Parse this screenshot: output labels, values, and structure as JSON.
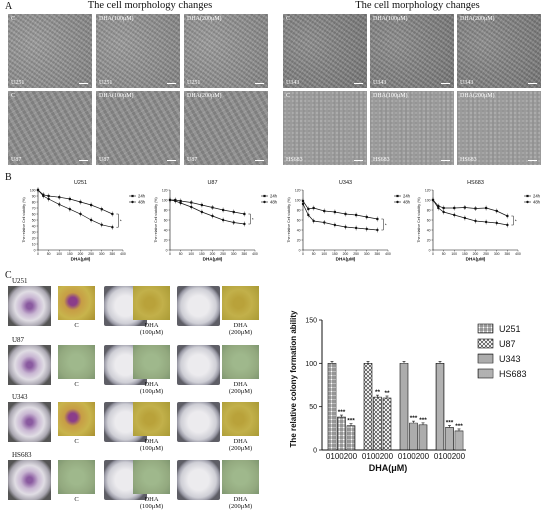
{
  "panel_a": {
    "letter": "A",
    "left_title": "The cell morphology changes",
    "right_title": "The cell morphology changes",
    "images": [
      {
        "top": "C",
        "bottom": "U251"
      },
      {
        "top": "DHA(100μM)",
        "bottom": "U251"
      },
      {
        "top": "DHA(200μM)",
        "bottom": "U251"
      },
      {
        "top": "C",
        "bottom": "U87"
      },
      {
        "top": "DHA(100μM)",
        "bottom": "U87"
      },
      {
        "top": "DHA(200μM)",
        "bottom": "U87"
      },
      {
        "top": "C",
        "bottom": "U343"
      },
      {
        "top": "DHA(100μM)",
        "bottom": "U343"
      },
      {
        "top": "DHA(200μM)",
        "bottom": "U343"
      },
      {
        "top": "C",
        "bottom": "HS683"
      },
      {
        "top": "DHA(100μM)",
        "bottom": "HS683"
      },
      {
        "top": "DHA(200μM)",
        "bottom": "HS683"
      }
    ]
  },
  "panel_b": {
    "letter": "B"
  },
  "panel_c": {
    "letter": "C",
    "rows": [
      {
        "cell": "U251",
        "labels": [
          "C",
          "DHA\n(100μM)",
          "DHA\n(200μM)"
        ]
      },
      {
        "cell": "U87",
        "labels": [
          "C",
          "DHA\n(100μM)",
          "DHA\n(200μM)"
        ]
      },
      {
        "cell": "U343",
        "labels": [
          "C",
          "DHA\n(100μM)",
          "DHA\n(200μM)"
        ]
      },
      {
        "cell": "HS683",
        "labels": [
          "C",
          "DHA\n(100μM)",
          "DHA\n(200μM)"
        ]
      }
    ]
  },
  "chart_data": [
    {
      "type": "line",
      "title": "U251",
      "xlabel": "DHA(μM)",
      "ylabel": "The relative Cell viability (%)",
      "x": [
        0,
        25,
        50,
        100,
        150,
        200,
        250,
        300,
        350
      ],
      "xticks": [
        0,
        50,
        100,
        150,
        200,
        250,
        300,
        350,
        400
      ],
      "yticks": [
        0,
        10,
        20,
        30,
        40,
        50,
        60,
        70,
        80,
        90,
        100
      ],
      "xlim": [
        0,
        400
      ],
      "ylim": [
        0,
        100
      ],
      "legend": "right",
      "series": [
        {
          "name": "24h",
          "values": [
            100,
            92,
            90,
            88,
            85,
            80,
            75,
            68,
            60
          ]
        },
        {
          "name": "48h",
          "values": [
            100,
            90,
            85,
            76,
            68,
            60,
            50,
            42,
            38
          ]
        }
      ],
      "annotation": "*"
    },
    {
      "type": "line",
      "title": "U87",
      "xlabel": "DHA(μM)",
      "ylabel": "The relative Cell viability (%)",
      "x": [
        0,
        25,
        50,
        100,
        150,
        200,
        250,
        300,
        350
      ],
      "xticks": [
        0,
        50,
        100,
        150,
        200,
        250,
        300,
        350,
        400
      ],
      "yticks": [
        0,
        20,
        40,
        60,
        80,
        100,
        120
      ],
      "xlim": [
        0,
        400
      ],
      "ylim": [
        0,
        120
      ],
      "legend": "right",
      "series": [
        {
          "name": "24h",
          "values": [
            100,
            100,
            98,
            95,
            90,
            85,
            80,
            76,
            72
          ]
        },
        {
          "name": "48h",
          "values": [
            100,
            98,
            94,
            86,
            76,
            68,
            60,
            55,
            52
          ]
        }
      ],
      "annotation": "*"
    },
    {
      "type": "line",
      "title": "U343",
      "xlabel": "DHA(μM)",
      "ylabel": "The relative Cell viability (%)",
      "x": [
        0,
        25,
        50,
        100,
        150,
        200,
        250,
        300,
        350
      ],
      "xticks": [
        0,
        50,
        100,
        150,
        200,
        250,
        300,
        350,
        400
      ],
      "yticks": [
        0,
        20,
        40,
        60,
        80,
        100,
        120
      ],
      "xlim": [
        0,
        400
      ],
      "ylim": [
        0,
        120
      ],
      "legend": "right",
      "series": [
        {
          "name": "24h",
          "values": [
            98,
            82,
            84,
            78,
            76,
            72,
            70,
            66,
            62
          ]
        },
        {
          "name": "48h",
          "values": [
            92,
            70,
            58,
            55,
            50,
            46,
            44,
            42,
            40
          ]
        }
      ],
      "annotation": "*"
    },
    {
      "type": "line",
      "title": "HS683",
      "xlabel": "DHA(μM)",
      "ylabel": "The relative Cell viability (%)",
      "x": [
        0,
        25,
        50,
        100,
        150,
        200,
        250,
        300,
        350
      ],
      "xticks": [
        0,
        50,
        100,
        150,
        200,
        250,
        300,
        350,
        400
      ],
      "yticks": [
        0,
        20,
        40,
        60,
        80,
        100,
        120
      ],
      "xlim": [
        0,
        400
      ],
      "ylim": [
        0,
        120
      ],
      "legend": "right",
      "series": [
        {
          "name": "24h",
          "values": [
            100,
            88,
            84,
            84,
            85,
            83,
            84,
            78,
            68
          ]
        },
        {
          "name": "48h",
          "values": [
            100,
            84,
            76,
            70,
            64,
            58,
            56,
            54,
            50
          ]
        }
      ],
      "annotation": "*"
    },
    {
      "type": "bar",
      "title": "",
      "xlabel": "DHA(μM)",
      "ylabel": "The relative colony formation ability",
      "categories": [
        "0",
        "100",
        "200"
      ],
      "group_tick_labels": [
        "0100200",
        "0100200",
        "0100200",
        "0100200"
      ],
      "yticks": [
        0,
        50,
        100,
        150
      ],
      "ylim": [
        0,
        150
      ],
      "legend": "right",
      "series": [
        {
          "name": "U251",
          "pattern": "grid",
          "values": [
            100,
            38,
            28
          ],
          "stars": [
            "",
            "***",
            "***"
          ]
        },
        {
          "name": "U87",
          "pattern": "cross",
          "values": [
            100,
            61,
            60
          ],
          "stars": [
            "",
            "**",
            "**"
          ]
        },
        {
          "name": "U343",
          "pattern": "hlines",
          "values": [
            100,
            31,
            29
          ],
          "stars": [
            "",
            "***",
            "***"
          ]
        },
        {
          "name": "HS683",
          "pattern": "vlines",
          "values": [
            100,
            26,
            22
          ],
          "stars": [
            "",
            "***",
            "***"
          ]
        }
      ]
    }
  ]
}
